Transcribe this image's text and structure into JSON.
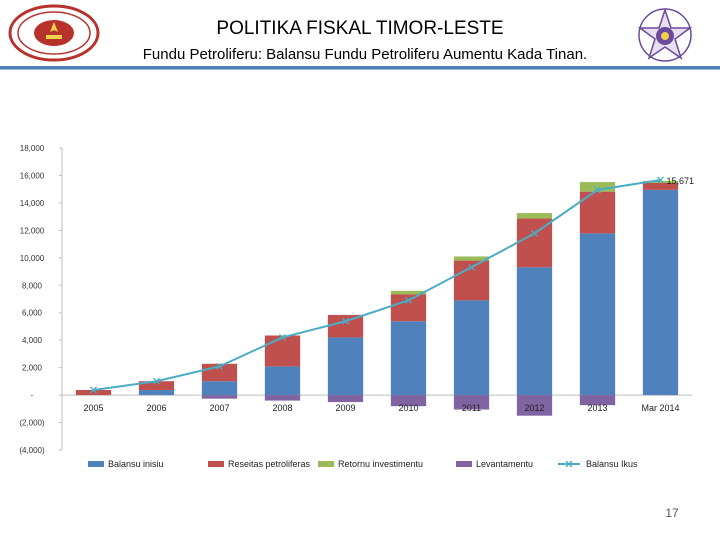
{
  "header": {
    "title": "POLITIKA FISKAL TIMOR-LESTE",
    "subtitle": "Fundu Petroliferu: Balansu Fundu Petroliferu Aumentu Kada Tinan."
  },
  "footer": {
    "page_number": "17"
  },
  "colors": {
    "balansu_inisiu": "#4f81bd",
    "reseitas_petroliferas": "#c0504d",
    "retornu_investimentu": "#9bbb59",
    "levantamentu": "#8064a2",
    "balansu_ikus": "#4bacc6",
    "rule": "#4f81bd",
    "logo_red": "#b8322c",
    "logo_purple": "#6a4a9a"
  },
  "icons": {
    "left_logo": "national-seal-icon",
    "right_logo": "star-emblem-icon"
  },
  "chart_data": {
    "type": "bar",
    "stacked": true,
    "categories": [
      "2005",
      "2006",
      "2007",
      "2008",
      "2009",
      "2010",
      "2011",
      "2012",
      "2013",
      "Mar 2014"
    ],
    "y_ticks": [
      "18,000",
      "16,000",
      "14,000",
      "12,000",
      "10,000",
      "8,000",
      "6,000",
      "4,000",
      "2,000",
      "-",
      "(2,000)",
      "(4,000)"
    ],
    "ylim": [
      -4000,
      18000
    ],
    "grid": false,
    "legend_position": "bottom",
    "series": [
      {
        "name": "Balansu inisiu",
        "values": [
          0,
          370,
          1010,
          2090,
          4200,
          5380,
          6900,
          9310,
          11780,
          14950
        ]
      },
      {
        "name": "Reseitas petroliferas",
        "values": [
          370,
          640,
          1270,
          2250,
          1640,
          1970,
          2900,
          3550,
          3040,
          500
        ]
      },
      {
        "name": "Retornu investimentu",
        "values": [
          0,
          0,
          0,
          0,
          0,
          250,
          300,
          400,
          700,
          160
        ]
      },
      {
        "name": "Levantamentu",
        "values": [
          0,
          0,
          -260,
          -400,
          -510,
          -810,
          -1050,
          -1500,
          -730,
          0
        ]
      }
    ],
    "line_series": {
      "name": "Balansu Ikus",
      "values": [
        370,
        1010,
        2090,
        4200,
        5380,
        6900,
        9310,
        11780,
        14950,
        15671
      ]
    },
    "annotation": "15,671"
  }
}
